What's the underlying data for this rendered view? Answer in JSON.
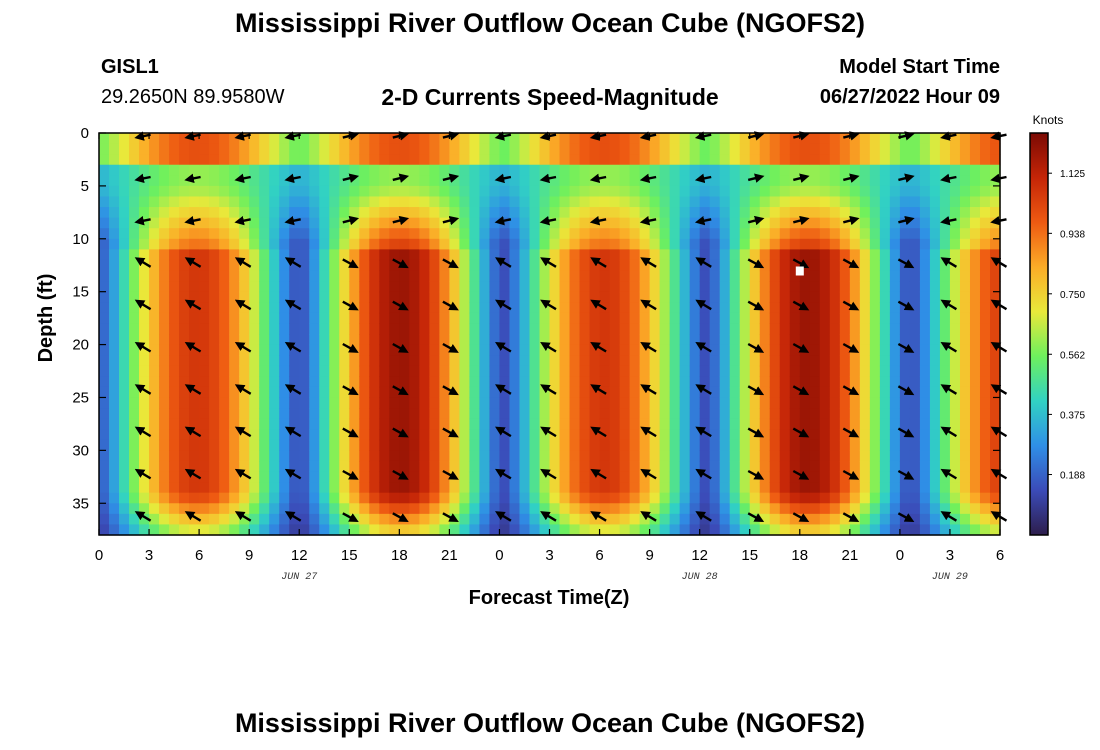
{
  "page": {
    "title": "Mississippi River Outflow Ocean Cube (NGOFS2)",
    "title_repeat": "Mississippi River Outflow Ocean Cube (NGOFS2)",
    "station_id": "GISL1",
    "station_coords": "29.2650N  89.9580W",
    "subtitle": "2-D Currents Speed-Magnitude",
    "model_start_label": "Model Start Time",
    "model_start_value": "06/27/2022 Hour 09"
  },
  "chart_data": {
    "type": "heatmap",
    "title": "2-D Currents Speed-Magnitude",
    "xlabel": "Forecast Time(Z)",
    "ylabel": "Depth (ft)",
    "x_range_hours": [
      0,
      54
    ],
    "y_range_ft": [
      0,
      38
    ],
    "x_ticks": [
      {
        "h": 0,
        "label": "0"
      },
      {
        "h": 3,
        "label": "3"
      },
      {
        "h": 6,
        "label": "6"
      },
      {
        "h": 9,
        "label": "9"
      },
      {
        "h": 12,
        "label": "12"
      },
      {
        "h": 15,
        "label": "15"
      },
      {
        "h": 18,
        "label": "18"
      },
      {
        "h": 21,
        "label": "21"
      },
      {
        "h": 24,
        "label": "0"
      },
      {
        "h": 27,
        "label": "3"
      },
      {
        "h": 30,
        "label": "6"
      },
      {
        "h": 33,
        "label": "9"
      },
      {
        "h": 36,
        "label": "12"
      },
      {
        "h": 39,
        "label": "15"
      },
      {
        "h": 42,
        "label": "18"
      },
      {
        "h": 45,
        "label": "21"
      },
      {
        "h": 48,
        "label": "0"
      },
      {
        "h": 51,
        "label": "3"
      },
      {
        "h": 54,
        "label": "6"
      }
    ],
    "date_labels": [
      {
        "h": 12,
        "label": "JUN 27"
      },
      {
        "h": 36,
        "label": "JUN 28"
      },
      {
        "h": 51,
        "label": "JUN 29"
      }
    ],
    "y_ticks": [
      0,
      5,
      10,
      15,
      20,
      25,
      30,
      35
    ],
    "colorbar": {
      "label": "Knots",
      "min": 0.0,
      "max": 1.25,
      "ticks": [
        "0.188",
        "0.375",
        "0.562",
        "0.750",
        "0.938",
        "1.125"
      ],
      "tick_values": [
        0.188,
        0.375,
        0.562,
        0.75,
        0.938,
        1.125
      ]
    },
    "arrow_depths_ft": [
      0,
      4,
      8,
      12,
      16,
      20,
      24,
      28,
      32,
      36
    ],
    "arrow_times_h": [
      2.7,
      5.7,
      8.7,
      11.7,
      15,
      18,
      21,
      24.3,
      27,
      30,
      33,
      36.3,
      39.3,
      42,
      45,
      48.3,
      51,
      54
    ],
    "max_speed_knots": 1.2,
    "mark": {
      "h": 42,
      "depth_ft": 13,
      "color": "#ffffff"
    },
    "colors": {
      "c0": "#2d1e4c",
      "c1": "#3b4bb8",
      "c2": "#2f8fe6",
      "c3": "#31d2c3",
      "c4": "#6ef05d",
      "c5": "#e9e93a",
      "c6": "#fbac27",
      "c7": "#ee5a12",
      "c8": "#c52507",
      "c9": "#7b0a04"
    }
  }
}
